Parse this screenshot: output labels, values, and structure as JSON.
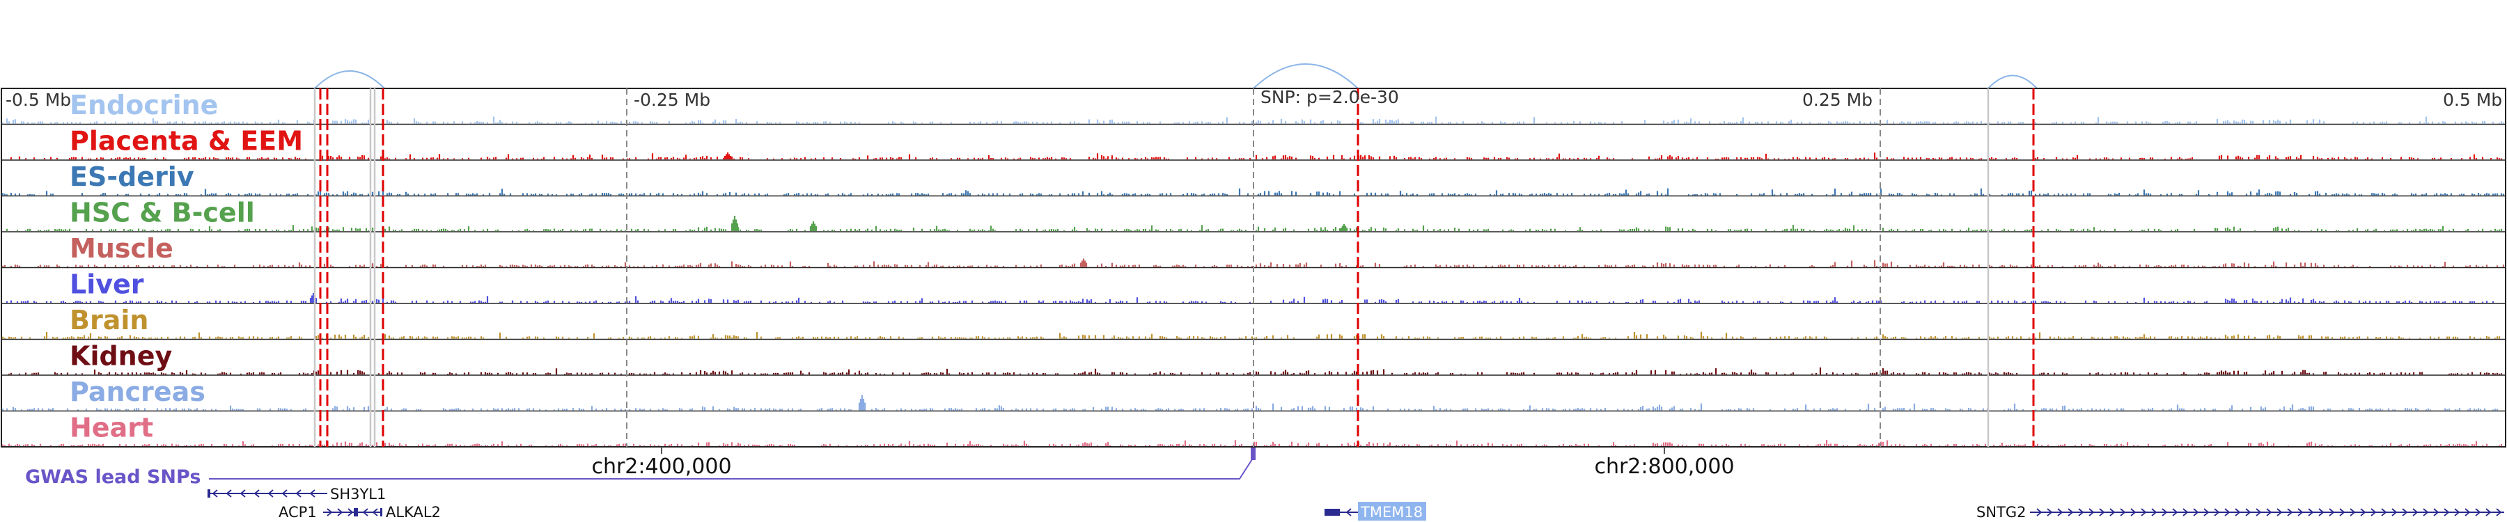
{
  "axis": {
    "left_label": "-0.5 Mb",
    "mid_left_label": "-0.25 Mb",
    "center_label": "SNP: p=2.0e-30",
    "mid_right_label": "0.25 Mb",
    "right_label": "0.5 Mb"
  },
  "tracks": [
    {
      "id": "endocrine",
      "label": "Endocrine",
      "color": "#a3c4ef"
    },
    {
      "id": "placenta-eem",
      "label": "Placenta & EEM",
      "color": "#e11414"
    },
    {
      "id": "es-deriv",
      "label": "ES-deriv",
      "color": "#3c78b4"
    },
    {
      "id": "hsc-b-cell",
      "label": "HSC & B-cell",
      "color": "#55a14e"
    },
    {
      "id": "muscle",
      "label": "Muscle",
      "color": "#c4605e"
    },
    {
      "id": "liver",
      "label": "Liver",
      "color": "#5050e0"
    },
    {
      "id": "brain",
      "label": "Brain",
      "color": "#c0922e"
    },
    {
      "id": "kidney",
      "label": "Kidney",
      "color": "#6e0e14"
    },
    {
      "id": "pancreas",
      "label": "Pancreas",
      "color": "#8aabe3"
    },
    {
      "id": "heart",
      "label": "Heart",
      "color": "#e06e86"
    }
  ],
  "coordinates": {
    "label_400k": "chr2:400,000",
    "label_800k": "chr2:800,000"
  },
  "gwas": {
    "label": "GWAS lead SNPs",
    "color": "#6a55c8"
  },
  "genes": [
    {
      "name": "SH3YL1",
      "highlighted": false
    },
    {
      "name": "ACP1",
      "highlighted": false
    },
    {
      "name": "ALKAL2",
      "highlighted": false
    },
    {
      "name": "TMEM18",
      "highlighted": true
    },
    {
      "name": "SNTG2",
      "highlighted": false
    }
  ],
  "colors": {
    "marker_red": "#e00000",
    "marker_gray": "#888888",
    "arc_blue": "#8cb6e8",
    "gene_blue": "#2a2a90",
    "highlight_bg": "#8fb5ef"
  }
}
